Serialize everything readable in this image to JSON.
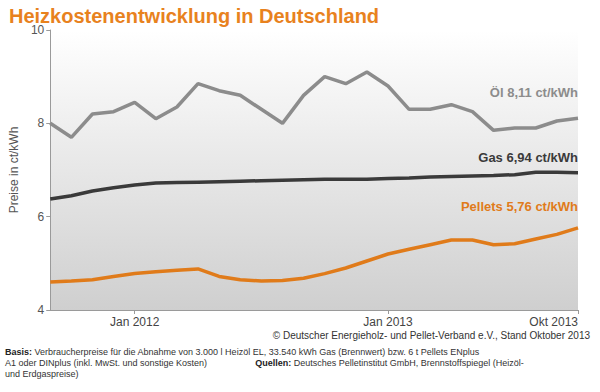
{
  "chart_data": {
    "type": "line",
    "title": "Heizkostenentwicklung in Deutschland",
    "ylabel": "Preise in ct/kWh",
    "categories": [
      null,
      null,
      null,
      null,
      "Jan 2012",
      null,
      null,
      null,
      null,
      null,
      null,
      null,
      null,
      null,
      null,
      null,
      "Jan 2013",
      null,
      null,
      null,
      null,
      null,
      null,
      null,
      null,
      "Okt 2013"
    ],
    "series": [
      {
        "name": "Öl 8,11 ct/kWh",
        "color": "#8c8c8c",
        "values": [
          8.0,
          7.7,
          8.2,
          8.25,
          8.45,
          8.1,
          8.35,
          8.85,
          8.7,
          8.6,
          8.3,
          8.0,
          8.6,
          9.0,
          8.85,
          9.1,
          8.8,
          8.3,
          8.3,
          8.4,
          8.25,
          7.85,
          7.9,
          7.9,
          8.05,
          8.11
        ]
      },
      {
        "name": "Gas 6,94 ct/kWh",
        "color": "#3a3a3a",
        "values": [
          6.38,
          6.45,
          6.55,
          6.62,
          6.68,
          6.72,
          6.73,
          6.74,
          6.75,
          6.76,
          6.77,
          6.78,
          6.79,
          6.8,
          6.8,
          6.8,
          6.82,
          6.83,
          6.85,
          6.86,
          6.87,
          6.88,
          6.9,
          6.95,
          6.95,
          6.94
        ]
      },
      {
        "name": "Pellets 5,76 ct/kWh",
        "color": "#e07b1a",
        "values": [
          4.6,
          4.62,
          4.65,
          4.72,
          4.78,
          4.82,
          4.85,
          4.88,
          4.72,
          4.65,
          4.62,
          4.63,
          4.68,
          4.78,
          4.9,
          5.05,
          5.2,
          5.3,
          5.4,
          5.5,
          5.5,
          5.4,
          5.42,
          5.52,
          5.62,
          5.76
        ]
      }
    ],
    "ylim": [
      4,
      10
    ],
    "yticks": [
      4,
      6,
      8,
      10
    ],
    "grid": false,
    "annotations": [
      "© Deutscher Energieholz- und Pellet-Verband e.V., Stand Oktober 2013"
    ],
    "footnote": [
      {
        "label": "Basis:",
        "text": "Verbraucherpreise für die Abnahme von 3.000 l Heizöl EL, 33.540 kWh Gas (Brennwert) bzw. 6 t Pellets ENplus A1 oder DINplus (inkl. MwSt. und sonstige Kosten)"
      },
      {
        "label": "Quellen:",
        "text": "Deutsches Pelletinstitut GmbH, Brennstoffspiegel (Heizöl- und Erdgaspreise)"
      }
    ]
  }
}
